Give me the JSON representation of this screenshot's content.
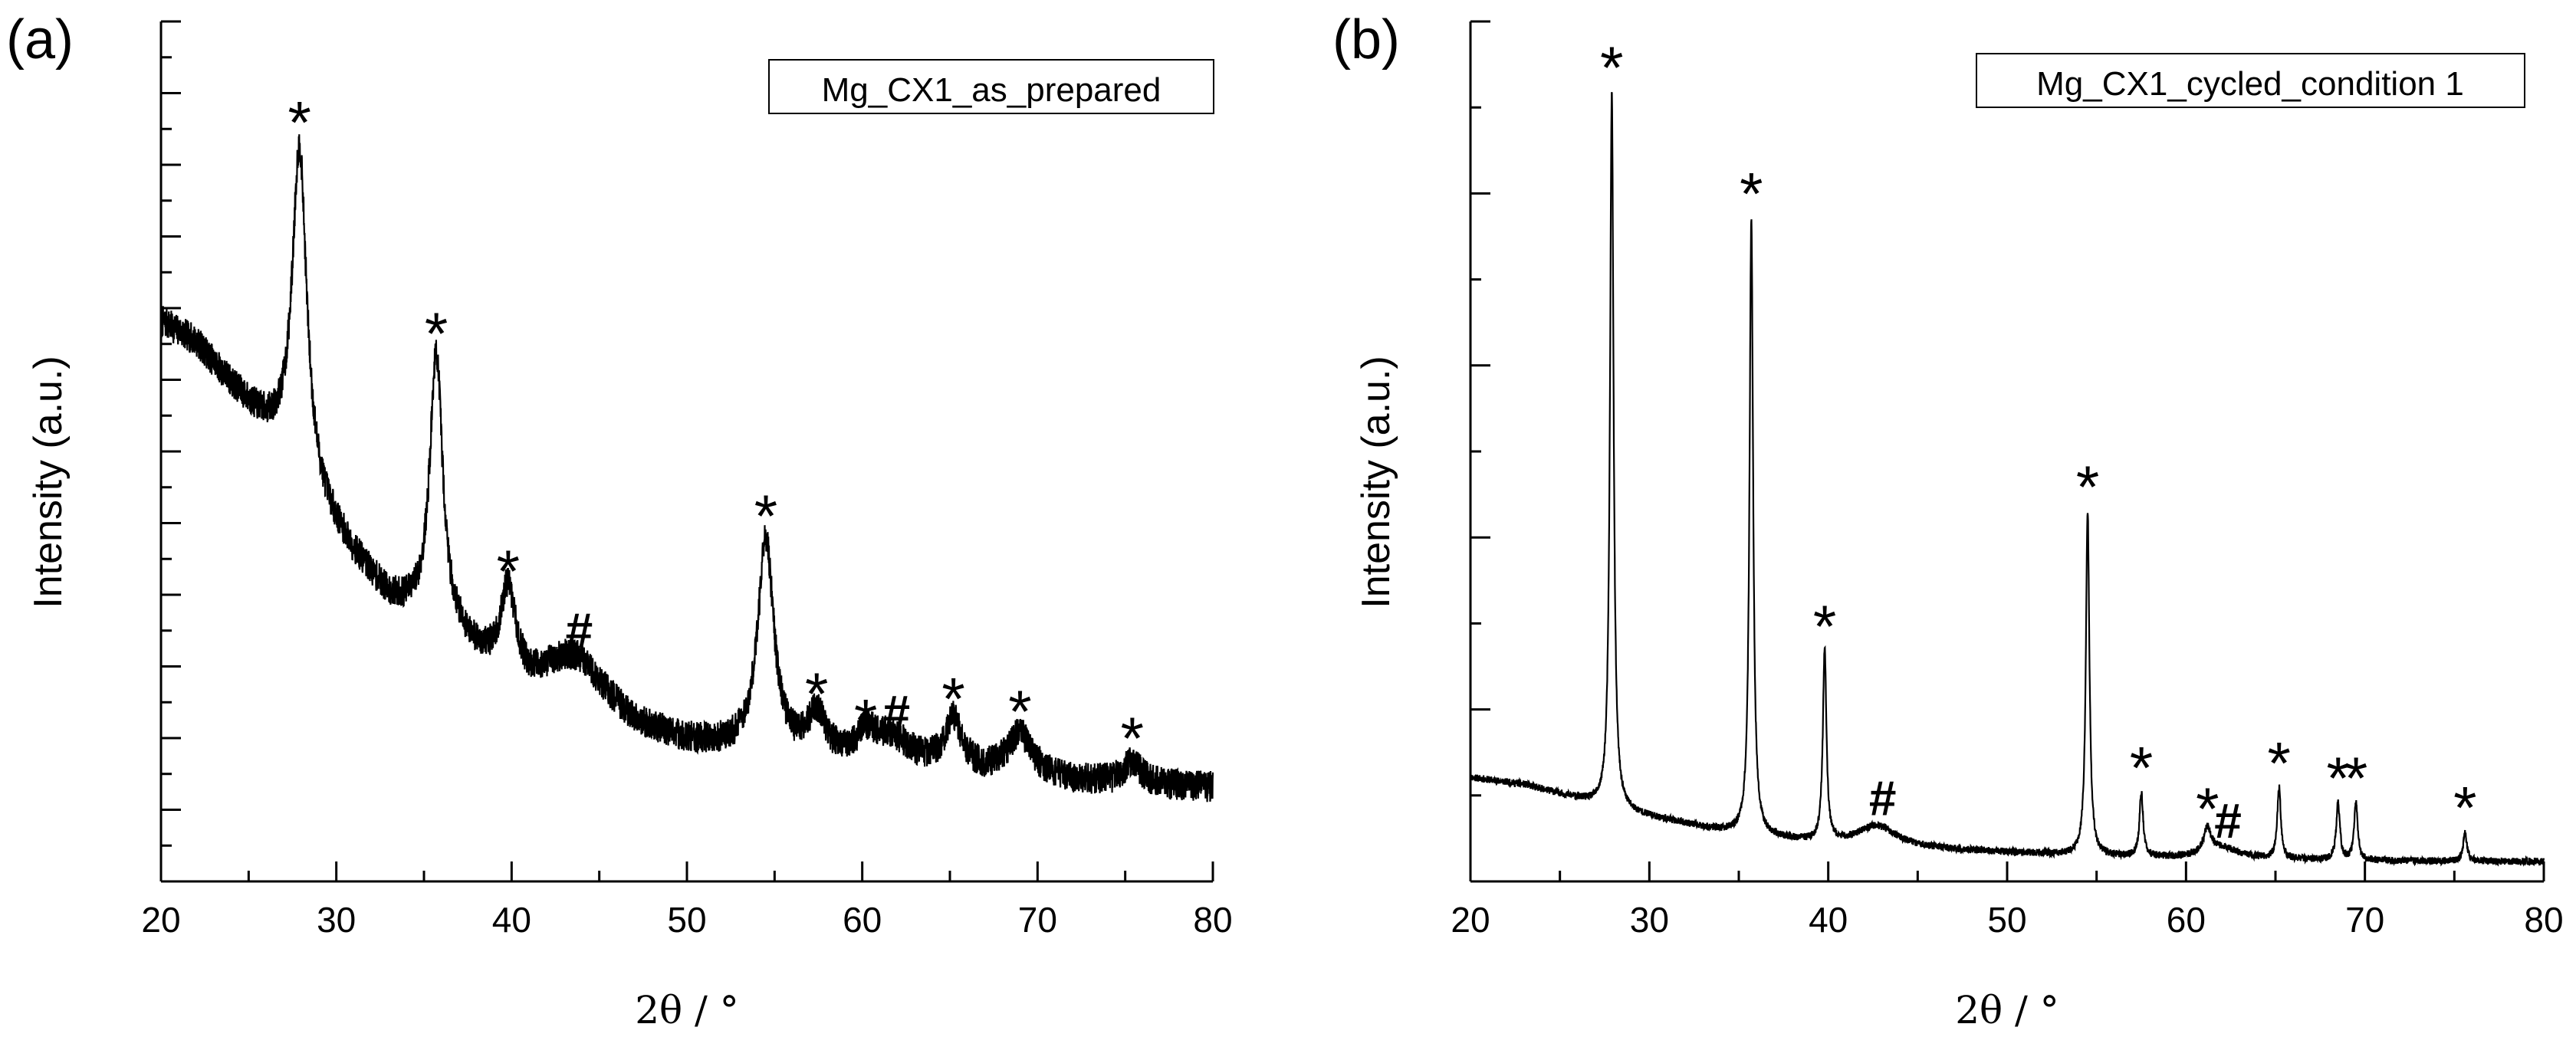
{
  "figure": {
    "panels": [
      "(a)",
      "(b)"
    ],
    "peak_symbols": {
      "phase_star": "*",
      "phase_hash": "#"
    }
  },
  "chart_data": [
    {
      "type": "line",
      "panel_label": "(a)",
      "legend": "Mg_CX1_as_prepared",
      "xlabel": "2θ / °",
      "ylabel": "Intensity (a.u.)",
      "xlim": [
        20,
        80
      ],
      "ylim": [
        0,
        120
      ],
      "xticks": [
        20,
        30,
        40,
        50,
        60,
        70,
        80
      ],
      "y_tick_labels_shown": false,
      "background": [
        [
          20,
          78
        ],
        [
          22,
          75
        ],
        [
          24,
          69
        ],
        [
          26,
          63
        ],
        [
          27,
          60
        ],
        [
          29,
          52
        ],
        [
          31,
          45
        ],
        [
          33,
          39
        ],
        [
          35,
          36
        ],
        [
          37,
          33
        ],
        [
          39,
          29
        ],
        [
          41,
          26
        ],
        [
          44,
          25
        ],
        [
          47,
          21
        ],
        [
          50,
          19
        ],
        [
          53,
          18
        ],
        [
          56,
          17
        ],
        [
          60,
          16
        ],
        [
          65,
          15
        ],
        [
          70,
          14
        ],
        [
          75,
          13.5
        ],
        [
          80,
          13
        ]
      ],
      "noise_amplitude": 2.2,
      "peaks": [
        {
          "x": 27.9,
          "height": 46,
          "width": 0.5,
          "marker": "*"
        },
        {
          "x": 35.7,
          "height": 38,
          "width": 0.45,
          "marker": "*"
        },
        {
          "x": 39.8,
          "height": 12,
          "width": 0.5,
          "marker": "*"
        },
        {
          "x": 43.5,
          "height": 6,
          "width": 2.2,
          "marker": "#"
        },
        {
          "x": 54.5,
          "height": 30,
          "width": 0.55,
          "marker": "*"
        },
        {
          "x": 57.4,
          "height": 6,
          "width": 0.6,
          "marker": "*"
        },
        {
          "x": 60.2,
          "height": 3,
          "width": 0.6,
          "marker": "*"
        },
        {
          "x": 61.6,
          "height": 4,
          "width": 1.5,
          "marker": "#"
        },
        {
          "x": 65.2,
          "height": 7,
          "width": 0.6,
          "marker": "*"
        },
        {
          "x": 69.0,
          "height": 6,
          "width": 0.9,
          "marker": "*"
        },
        {
          "x": 75.4,
          "height": 3,
          "width": 0.6,
          "marker": "*"
        }
      ]
    },
    {
      "type": "line",
      "panel_label": "(b)",
      "legend": "Mg_CX1_cycled_condition 1",
      "xlabel": "2θ / °",
      "ylabel": "Intensity (a.u.)",
      "xlim": [
        20,
        80
      ],
      "ylim": [
        0,
        120
      ],
      "xticks": [
        20,
        30,
        40,
        50,
        60,
        70,
        80
      ],
      "y_tick_labels_shown": false,
      "background": [
        [
          20,
          14.5
        ],
        [
          23,
          13.5
        ],
        [
          26,
          11.5
        ],
        [
          28,
          10
        ],
        [
          31,
          8.5
        ],
        [
          34,
          7
        ],
        [
          37,
          6
        ],
        [
          40,
          5
        ],
        [
          45,
          4.5
        ],
        [
          50,
          4
        ],
        [
          55,
          3.5
        ],
        [
          60,
          3.2
        ],
        [
          65,
          3
        ],
        [
          70,
          2.9
        ],
        [
          75,
          2.8
        ],
        [
          80,
          2.8
        ]
      ],
      "noise_amplitude": 0.5,
      "peaks": [
        {
          "x": 27.9,
          "height": 100,
          "width": 0.12,
          "marker": "*"
        },
        {
          "x": 35.7,
          "height": 86,
          "width": 0.12,
          "marker": "*"
        },
        {
          "x": 39.8,
          "height": 27,
          "width": 0.12,
          "marker": "*"
        },
        {
          "x": 42.7,
          "height": 3,
          "width": 1.4,
          "marker": "#"
        },
        {
          "x": 54.5,
          "height": 48,
          "width": 0.12,
          "marker": "*"
        },
        {
          "x": 57.5,
          "height": 9,
          "width": 0.12,
          "marker": "*"
        },
        {
          "x": 61.2,
          "height": 3.5,
          "width": 0.25,
          "marker": "*"
        },
        {
          "x": 62.0,
          "height": 1.5,
          "width": 1.2,
          "marker": "#"
        },
        {
          "x": 65.2,
          "height": 10,
          "width": 0.12,
          "marker": "*"
        },
        {
          "x": 68.5,
          "height": 8,
          "width": 0.12,
          "marker": "*"
        },
        {
          "x": 69.5,
          "height": 8,
          "width": 0.12,
          "marker": "*"
        },
        {
          "x": 75.6,
          "height": 4,
          "width": 0.12,
          "marker": "*"
        }
      ]
    }
  ]
}
